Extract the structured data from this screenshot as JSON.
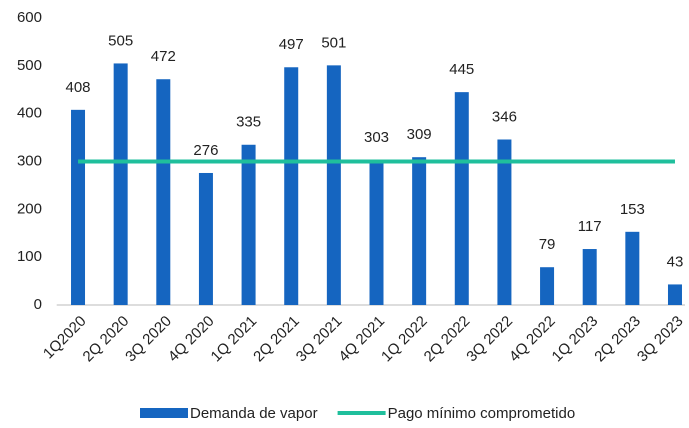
{
  "chart_data": {
    "type": "bar",
    "categories": [
      "1Q2020",
      "2Q 2020",
      "3Q 2020",
      "4Q 2020",
      "1Q 2021",
      "2Q 2021",
      "3Q 2021",
      "4Q 2021",
      "1Q 2022",
      "2Q 2022",
      "3Q 2022",
      "4Q 2022",
      "1Q 2023",
      "2Q 2023",
      "3Q 2023"
    ],
    "series": [
      {
        "name": "Demanda de vapor",
        "type": "bar",
        "color": "#1565c0",
        "values": [
          408,
          505,
          472,
          276,
          335,
          497,
          501,
          303,
          309,
          445,
          346,
          79,
          117,
          153,
          43
        ]
      },
      {
        "name": "Pago mínimo comprometido",
        "type": "line",
        "color": "#1fbf9c",
        "values": [
          300,
          300,
          300,
          300,
          300,
          300,
          300,
          300,
          300,
          300,
          300,
          300,
          300,
          300,
          300
        ]
      }
    ],
    "ylim": [
      0,
      600
    ],
    "yticks": [
      0,
      100,
      200,
      300,
      400,
      500,
      600
    ],
    "grid": false
  }
}
